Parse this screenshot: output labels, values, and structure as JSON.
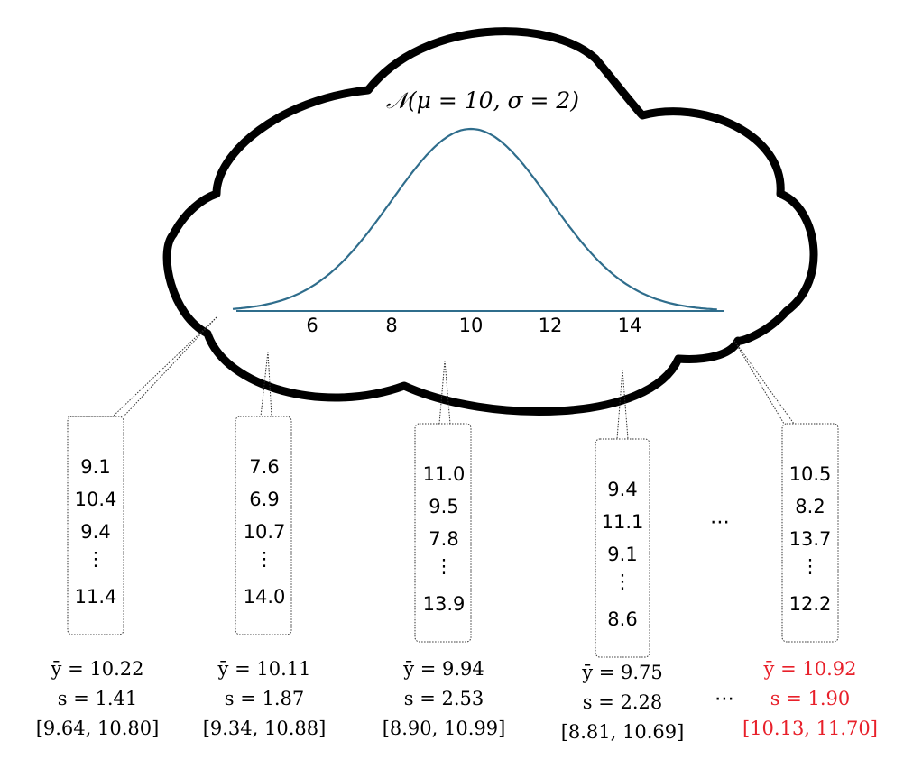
{
  "title": "𝒩(μ = 10, σ = 2)",
  "distribution": {
    "mu": 10,
    "sigma": 2,
    "x_min": 4.0,
    "x_max": 16.2
  },
  "x_ticks": [
    "6",
    "8",
    "10",
    "12",
    "14"
  ],
  "ellipsis": "⋯",
  "highlight_color": "#e8202a",
  "curve_color": "#2f6d8c",
  "samples": [
    {
      "values": [
        "9.1",
        "10.4",
        "9.4",
        "⋮",
        "11.4"
      ],
      "mean": "ȳ = 10.22",
      "sd": "s = 1.41",
      "ci": "[9.64,  10.80]",
      "highlight": false
    },
    {
      "values": [
        "7.6",
        "6.9",
        "10.7",
        "⋮",
        "14.0"
      ],
      "mean": "ȳ = 10.11",
      "sd": "s = 1.87",
      "ci": "[9.34,  10.88]",
      "highlight": false
    },
    {
      "values": [
        "11.0",
        "9.5",
        "7.8",
        "⋮",
        "13.9"
      ],
      "mean": "ȳ = 9.94",
      "sd": "s = 2.53",
      "ci": "[8.90,  10.99]",
      "highlight": false
    },
    {
      "values": [
        "9.4",
        "11.1",
        "9.1",
        "⋮",
        "8.6"
      ],
      "mean": "ȳ = 9.75",
      "sd": "s = 2.28",
      "ci": "[8.81,  10.69]",
      "highlight": false
    },
    {
      "values": [
        "10.5",
        "8.2",
        "13.7",
        "⋮",
        "12.2"
      ],
      "mean": "ȳ = 10.92",
      "sd": "s = 1.90",
      "ci": "[10.13,  11.70]",
      "highlight": true
    }
  ]
}
